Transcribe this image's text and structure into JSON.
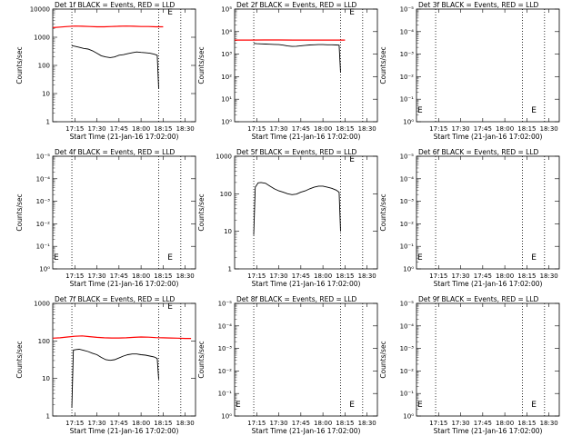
{
  "figure": {
    "xlabel": "Start Time (21-Jan-16 17:02:00)",
    "ylabel": "Counts/sec",
    "x_tick_labels": [
      "17:15",
      "17:30",
      "17:45",
      "18:00",
      "18:15",
      "18:30"
    ],
    "event_color": "#000000",
    "lld_color": "#ff0000"
  },
  "chart_data": [
    {
      "type": "line",
      "title": "Det 1f BLACK = Events, RED = LLD",
      "y_scale": "log",
      "ylim": [
        1,
        10000
      ],
      "y_tick_labels": [
        "1",
        "10",
        "100",
        "1000",
        "10000"
      ],
      "x_tick_minutes": [
        15,
        30,
        45,
        60,
        75,
        90
      ],
      "marker_lines_min": [
        13,
        72,
        87
      ],
      "series": [
        {
          "role": "events",
          "x": [
            13,
            15,
            18,
            21,
            24,
            27,
            30,
            33,
            36,
            39,
            42,
            45,
            48,
            51,
            54,
            57,
            60,
            63,
            66,
            69,
            71,
            72
          ],
          "values": [
            500,
            480,
            440,
            400,
            380,
            330,
            270,
            220,
            200,
            190,
            200,
            230,
            240,
            260,
            280,
            300,
            290,
            280,
            270,
            250,
            230,
            15
          ]
        },
        {
          "role": "lld",
          "x": [
            0,
            5,
            10,
            15,
            20,
            25,
            30,
            35,
            40,
            45,
            50,
            55,
            60,
            65,
            70,
            75
          ],
          "values": [
            2200,
            2300,
            2400,
            2500,
            2450,
            2400,
            2350,
            2350,
            2400,
            2450,
            2500,
            2450,
            2400,
            2400,
            2350,
            2350
          ]
        }
      ]
    },
    {
      "type": "line",
      "title": "Det 2f BLACK = Events, RED = LLD",
      "y_scale": "log",
      "ylim": [
        1,
        100000
      ],
      "y_tick_labels": [
        "10⁰",
        "10¹",
        "10²",
        "10³",
        "10⁴",
        "10⁵"
      ],
      "x_tick_minutes": [
        15,
        30,
        45,
        60,
        75,
        90
      ],
      "marker_lines_min": [
        13,
        72,
        87
      ],
      "series": [
        {
          "role": "events",
          "x": [
            13,
            15,
            18,
            21,
            24,
            27,
            30,
            33,
            36,
            39,
            42,
            45,
            48,
            51,
            54,
            57,
            60,
            63,
            66,
            69,
            71,
            72
          ],
          "values": [
            3000,
            2900,
            2850,
            2800,
            2750,
            2700,
            2650,
            2500,
            2300,
            2200,
            2250,
            2350,
            2450,
            2550,
            2600,
            2650,
            2650,
            2600,
            2600,
            2550,
            2500,
            150
          ]
        },
        {
          "role": "lld",
          "x": [
            0,
            10,
            20,
            30,
            40,
            50,
            60,
            70,
            75
          ],
          "values": [
            4200,
            4200,
            4250,
            4250,
            4200,
            4200,
            4200,
            4200,
            4200
          ]
        }
      ]
    },
    {
      "type": "line",
      "title": "Det 3f BLACK = Events, RED = LLD",
      "y_scale": "log",
      "ylim": [
        0.1,
        100000
      ],
      "y_tick_labels": [
        "10⁰",
        "10⁻¹",
        "10⁻²",
        "10⁻³",
        "10⁻⁴",
        "10⁻⁵"
      ],
      "x_tick_minutes": [
        15,
        30,
        45,
        60,
        75,
        90
      ],
      "marker_lines_min": [
        13,
        72,
        87
      ],
      "series": []
    },
    {
      "type": "line",
      "title": "Det 4f BLACK = Events, RED = LLD",
      "y_scale": "log",
      "ylim": [
        0.1,
        100000
      ],
      "y_tick_labels": [
        "10⁰",
        "10⁻¹",
        "10⁻²",
        "10⁻³",
        "10⁻⁴",
        "10⁻⁵"
      ],
      "x_tick_minutes": [
        15,
        30,
        45,
        60,
        75,
        90
      ],
      "marker_lines_min": [
        13,
        72,
        87
      ],
      "series": []
    },
    {
      "type": "line",
      "title": "Det 5f BLACK = Events, RED = LLD",
      "y_scale": "log",
      "ylim": [
        1,
        1000
      ],
      "y_tick_labels": [
        "1",
        "10",
        "100",
        "1000"
      ],
      "x_tick_minutes": [
        15,
        30,
        45,
        60,
        75,
        90
      ],
      "marker_lines_min": [
        13,
        72,
        87
      ],
      "series": [
        {
          "role": "events",
          "x": [
            13,
            14,
            16,
            18,
            21,
            24,
            27,
            30,
            33,
            36,
            39,
            42,
            45,
            48,
            51,
            54,
            57,
            60,
            63,
            66,
            69,
            71,
            72
          ],
          "values": [
            8,
            150,
            195,
            200,
            190,
            160,
            135,
            120,
            110,
            100,
            95,
            98,
            110,
            120,
            135,
            150,
            160,
            160,
            150,
            140,
            125,
            110,
            10
          ]
        }
      ]
    },
    {
      "type": "line",
      "title": "Det 6f BLACK = Events, RED = LLD",
      "y_scale": "log",
      "ylim": [
        0.1,
        100000
      ],
      "y_tick_labels": [
        "10⁰",
        "10⁻¹",
        "10⁻²",
        "10⁻³",
        "10⁻⁴",
        "10⁻⁵"
      ],
      "x_tick_minutes": [
        15,
        30,
        45,
        60,
        75,
        90
      ],
      "marker_lines_min": [
        13,
        72,
        87
      ],
      "series": []
    },
    {
      "type": "line",
      "title": "Det 7f BLACK = Events, RED = LLD",
      "y_scale": "log",
      "ylim": [
        1,
        10000
      ],
      "y_tick_labels": [
        "1",
        "10",
        "100",
        "1000"
      ],
      "x_tick_minutes": [
        15,
        30,
        45,
        60,
        75,
        90
      ],
      "marker_lines_min": [
        13,
        72,
        87
      ],
      "series": [
        {
          "role": "events",
          "x": [
            13,
            14,
            16,
            18,
            21,
            24,
            27,
            30,
            33,
            36,
            39,
            42,
            45,
            48,
            51,
            54,
            57,
            60,
            63,
            66,
            69,
            71,
            72
          ],
          "values": [
            2,
            220,
            230,
            235,
            215,
            195,
            170,
            150,
            120,
            100,
            95,
            100,
            115,
            135,
            150,
            160,
            160,
            150,
            145,
            135,
            125,
            110,
            20
          ]
        },
        {
          "role": "lld",
          "x": [
            0,
            5,
            10,
            15,
            20,
            25,
            30,
            35,
            40,
            45,
            50,
            55,
            60,
            65,
            70,
            75,
            80,
            85,
            90,
            94
          ],
          "values": [
            580,
            600,
            640,
            680,
            700,
            660,
            620,
            600,
            590,
            590,
            600,
            620,
            640,
            630,
            610,
            600,
            590,
            580,
            570,
            570
          ]
        }
      ]
    },
    {
      "type": "line",
      "title": "Det 8f BLACK = Events, RED = LLD",
      "y_scale": "log",
      "ylim": [
        0.1,
        100000
      ],
      "y_tick_labels": [
        "10⁰",
        "10⁻¹",
        "10⁻²",
        "10⁻³",
        "10⁻⁴",
        "10⁻⁵"
      ],
      "x_tick_minutes": [
        15,
        30,
        45,
        60,
        75,
        90
      ],
      "marker_lines_min": [
        13,
        72,
        87
      ],
      "series": []
    },
    {
      "type": "line",
      "title": "Det 9f BLACK = Events, RED = LLD",
      "y_scale": "log",
      "ylim": [
        0.1,
        100000
      ],
      "y_tick_labels": [
        "10⁰",
        "10⁻¹",
        "10⁻²",
        "10⁻³",
        "10⁻⁴",
        "10⁻⁵"
      ],
      "x_tick_minutes": [
        15,
        30,
        45,
        60,
        75,
        90
      ],
      "marker_lines_min": [
        13,
        72,
        87
      ],
      "series": []
    }
  ]
}
